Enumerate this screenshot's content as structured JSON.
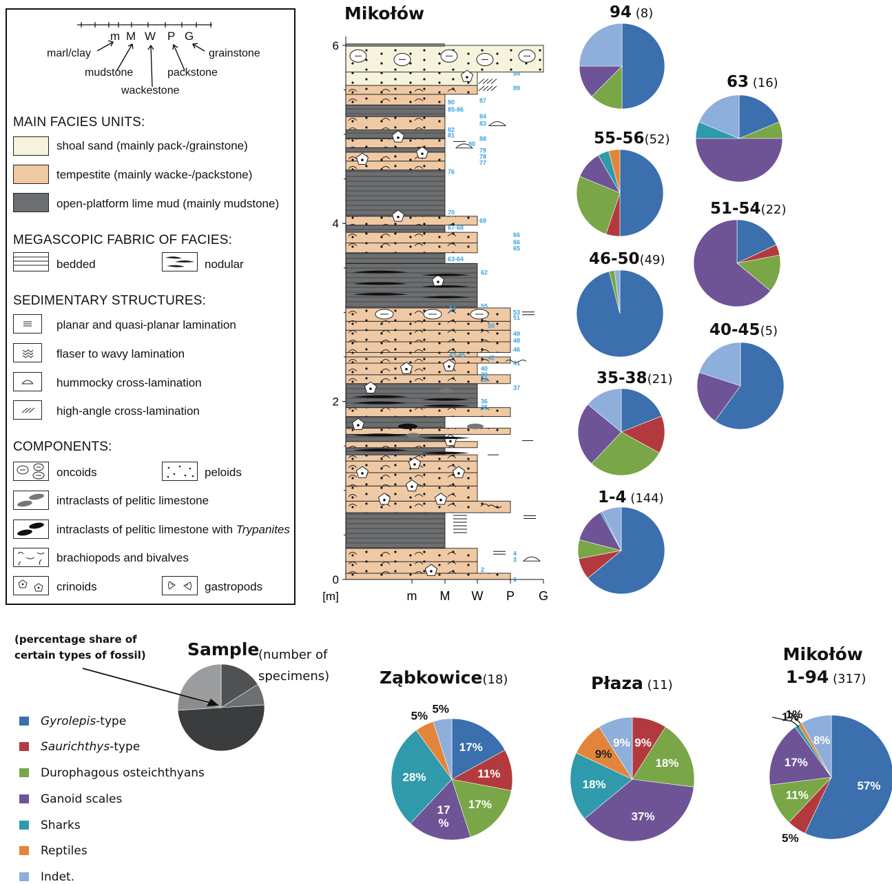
{
  "facies_key": {
    "scale_labels": [
      "m",
      "M",
      "W",
      "P",
      "G"
    ],
    "scale_names": {
      "marl": "marl/clay",
      "mud": "mudstone",
      "wacke": "wackestone",
      "pack": "packstone",
      "grain": "grainstone"
    },
    "main_facies_heading": "MAIN FACIES UNITS:",
    "main_facies": [
      {
        "label": "shoal sand (mainly pack-/grainstone)",
        "color": "#f6f3dc"
      },
      {
        "label": "tempestite (mainly wacke-/packstone)",
        "color": "#efc9a4"
      },
      {
        "label": "open-platform lime mud (mainly mudstone)",
        "color": "#6c6e70"
      }
    ],
    "fabric_heading": "MEGASCOPIC FABRIC OF FACIES:",
    "fabric": {
      "bedded": "bedded",
      "nodular": "nodular"
    },
    "structures_heading": "SEDIMENTARY STRUCTURES:",
    "structures": [
      "planar and quasi-planar lamination",
      "flaser to wavy lamination",
      "hummocky cross-lamination",
      "high-angle cross-lamination"
    ],
    "components_heading": "COMPONENTS:",
    "components": {
      "oncoids": "oncoids",
      "peloids": "peloids",
      "intraclasts": "intraclasts of pelitic limestone",
      "intraclasts_tryp_prefix": "intraclasts of pelitic limestone with ",
      "intraclasts_tryp_italic": "Trypanites",
      "brachiopods": "brachiopods and bivalves",
      "crinoids": "crinoids",
      "gastropods": "gastropods"
    }
  },
  "section": {
    "title": "Mikołów",
    "y_unit": "[m]",
    "y_ticks": [
      "0",
      "2",
      "4",
      "6"
    ],
    "x_ticks": [
      "m",
      "M",
      "W",
      "P",
      "G"
    ]
  },
  "fossil_categories": [
    {
      "key": "gyrolepis",
      "name_italic": "Gyrolepis",
      "name_suffix": "-type",
      "color": "#3b6fad"
    },
    {
      "key": "saurichthys",
      "name_italic": "Saurichthys",
      "name_suffix": "-type",
      "color": "#b23a3e"
    },
    {
      "key": "durophagous",
      "name": "Durophagous osteichthyans",
      "color": "#79a646"
    },
    {
      "key": "ganoid",
      "name": "Ganoid scales",
      "color": "#6e5497"
    },
    {
      "key": "sharks",
      "name": "Sharks",
      "color": "#2f9aab"
    },
    {
      "key": "reptiles",
      "name": "Reptiles",
      "color": "#e2853a"
    },
    {
      "key": "indet",
      "name": "Indet.",
      "color": "#8eaedb"
    }
  ],
  "sample_key": {
    "annotation": "(percentage share of certain types of fossil)",
    "title": "Sample",
    "count_label": "(number of specimens)"
  },
  "chart_data": [
    {
      "type": "pie",
      "title": "94",
      "count": "(8)",
      "values": [
        50,
        0,
        12.5,
        12.5,
        0,
        0,
        25
      ]
    },
    {
      "type": "pie",
      "title": "63",
      "count": "(16)",
      "values": [
        18.75,
        0,
        6.25,
        50,
        6.25,
        0,
        18.75
      ]
    },
    {
      "type": "pie",
      "title": "55-56",
      "count": "(52)",
      "values": [
        48,
        5,
        25,
        10,
        4,
        4,
        0
      ]
    },
    {
      "type": "pie",
      "title": "51-54",
      "count": "(22)",
      "values": [
        18,
        4,
        14,
        64,
        0,
        0,
        0
      ]
    },
    {
      "type": "pie",
      "title": "46-50",
      "count": "(49)",
      "values": [
        96,
        0,
        2,
        0,
        0,
        0,
        2
      ]
    },
    {
      "type": "pie",
      "title": "40-45",
      "count": "(5)",
      "values": [
        60,
        0,
        0,
        20,
        0,
        0,
        20
      ]
    },
    {
      "type": "pie",
      "title": "35-38",
      "count": "(21)",
      "values": [
        19,
        14,
        29,
        24,
        0,
        0,
        14
      ]
    },
    {
      "type": "pie",
      "title": "1-4",
      "count": "(144)",
      "values": [
        64,
        8,
        7,
        13,
        0.7,
        0,
        7.3
      ]
    },
    {
      "type": "pie",
      "title": "Ząbkowice",
      "count": "(18)",
      "values": [
        17,
        11,
        17,
        17,
        28,
        5,
        5
      ],
      "labels": [
        "17%",
        "11%",
        "17%",
        "17\n%",
        "28%",
        "5%",
        "5%"
      ]
    },
    {
      "type": "pie",
      "title": "Płaza",
      "count": "(11)",
      "values": [
        0,
        9,
        18,
        37,
        18,
        9,
        9
      ],
      "labels": [
        "",
        "9%",
        "18%",
        "37%",
        "18%",
        "9%",
        "9%"
      ]
    },
    {
      "type": "pie",
      "title": "Mikołów\n1-94",
      "count": "(317)",
      "values": [
        57,
        5,
        11,
        17,
        1,
        1,
        8
      ],
      "labels": [
        "57%",
        "5%",
        "11%",
        "17%",
        "1%",
        "1%",
        "8%"
      ]
    }
  ]
}
